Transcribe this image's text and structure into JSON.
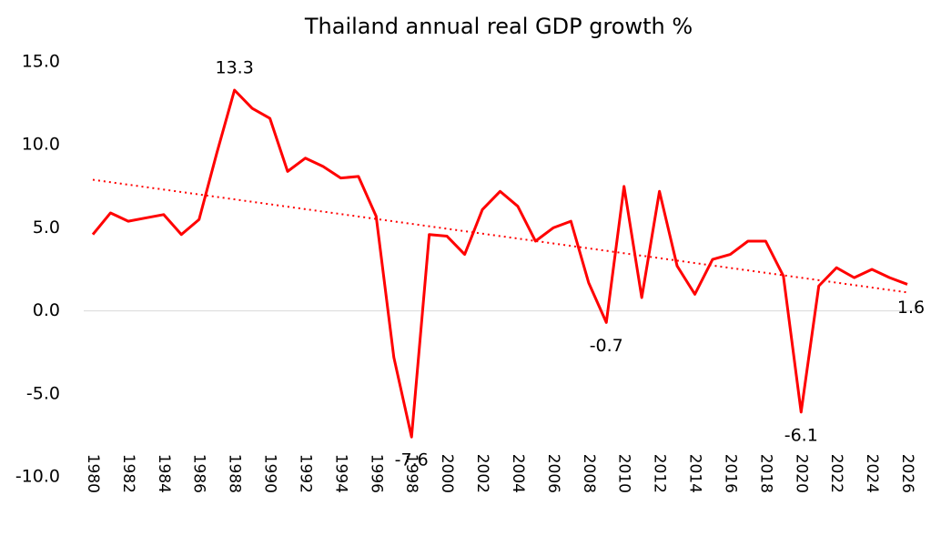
{
  "chart_data": {
    "type": "line",
    "title": "Thailand annual real GDP growth %",
    "x": [
      1980,
      1981,
      1982,
      1983,
      1984,
      1985,
      1986,
      1987,
      1988,
      1989,
      1990,
      1991,
      1992,
      1993,
      1994,
      1995,
      1996,
      1997,
      1998,
      1999,
      2000,
      2001,
      2002,
      2003,
      2004,
      2005,
      2006,
      2007,
      2008,
      2009,
      2010,
      2011,
      2012,
      2013,
      2014,
      2015,
      2016,
      2017,
      2018,
      2019,
      2020,
      2021,
      2022,
      2023,
      2024,
      2025,
      2026
    ],
    "series": [
      {
        "color": "#ff0000",
        "values": [
          4.6,
          5.9,
          5.4,
          5.6,
          5.8,
          4.6,
          5.5,
          9.5,
          13.3,
          12.2,
          11.6,
          8.4,
          9.2,
          8.7,
          8.0,
          8.1,
          5.7,
          -2.8,
          -7.6,
          4.6,
          4.5,
          3.4,
          6.1,
          7.2,
          6.3,
          4.2,
          5.0,
          5.4,
          1.7,
          -0.7,
          7.5,
          0.8,
          7.2,
          2.7,
          1.0,
          3.1,
          3.4,
          4.2,
          4.2,
          2.1,
          -6.1,
          1.5,
          2.6,
          2.0,
          2.5,
          2.0,
          1.6
        ],
        "value_labels": [
          null,
          null,
          null,
          null,
          null,
          null,
          null,
          null,
          "13.3",
          null,
          null,
          null,
          null,
          null,
          null,
          null,
          null,
          null,
          "-7.6",
          null,
          null,
          null,
          null,
          null,
          null,
          null,
          null,
          null,
          null,
          "-0.7",
          null,
          null,
          null,
          null,
          null,
          null,
          null,
          null,
          null,
          null,
          "-6.1",
          null,
          null,
          null,
          null,
          null,
          "1.6"
        ]
      }
    ],
    "trendline": "linear",
    "xlim": [
      1980,
      2026
    ],
    "xticks": [
      1980,
      1982,
      1984,
      1986,
      1988,
      1990,
      1992,
      1994,
      1996,
      1998,
      2000,
      2002,
      2004,
      2006,
      2008,
      2010,
      2012,
      2014,
      2016,
      2018,
      2020,
      2022,
      2024,
      2026
    ],
    "ylim": [
      -10,
      15
    ],
    "yticks": [
      {
        "value": -10,
        "label": "-10.0"
      },
      {
        "value": -5,
        "label": "-5.0"
      },
      {
        "value": 0,
        "label": "0.0"
      },
      {
        "value": 5,
        "label": "5.0"
      },
      {
        "value": 10,
        "label": "10.0"
      },
      {
        "value": 15,
        "label": "15.0"
      }
    ],
    "grid": false
  }
}
